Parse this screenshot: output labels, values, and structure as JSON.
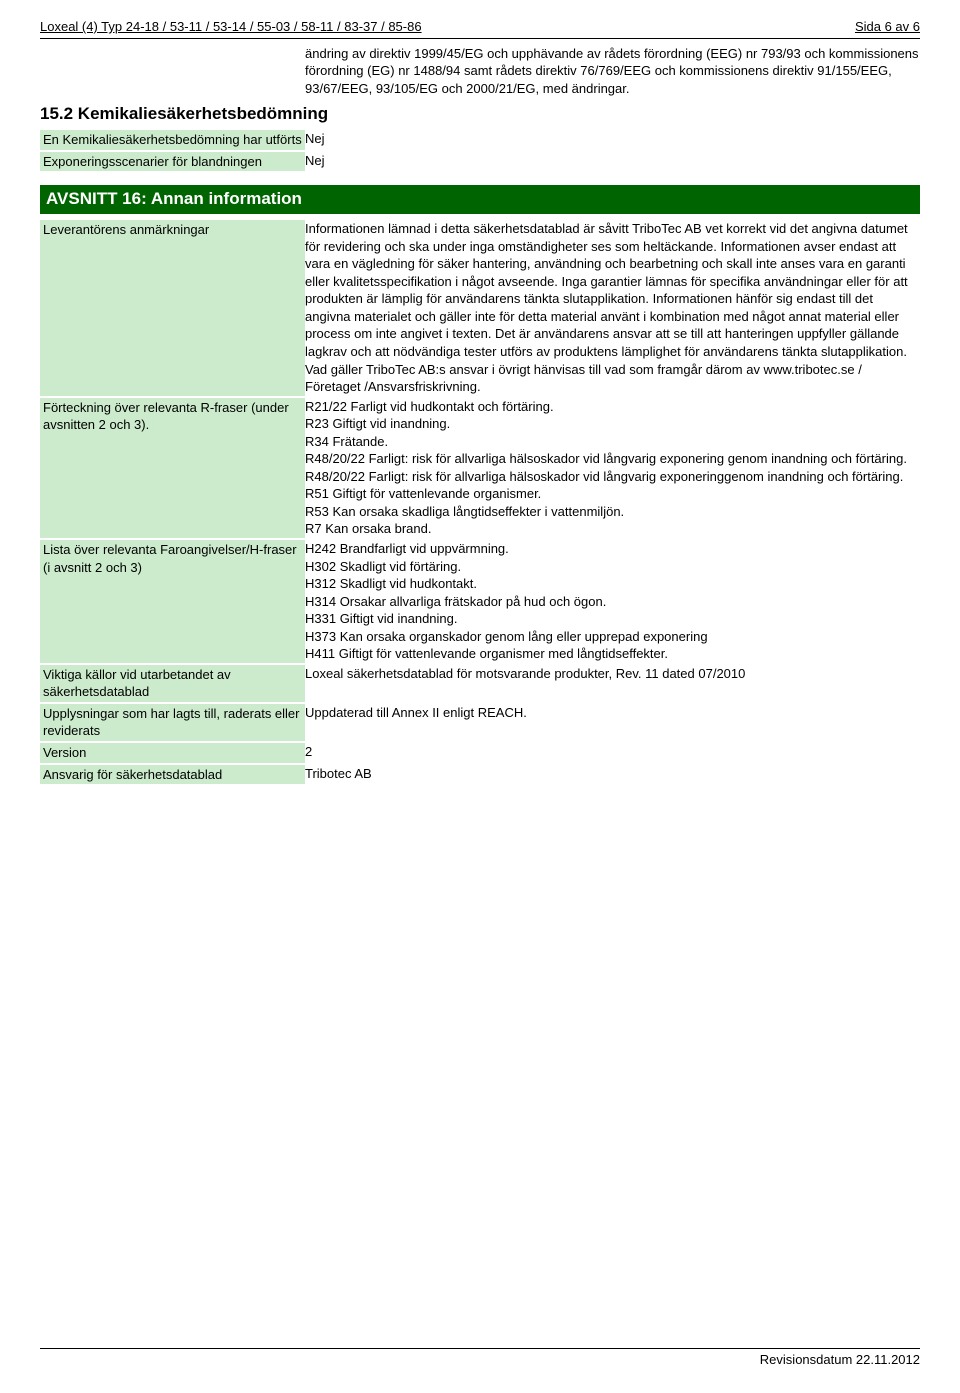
{
  "header": {
    "title": "Loxeal (4) Typ 24-18 / 53-11 / 53-14 / 55-03 / 58-11 / 83-37 / 85-86",
    "page": "Sida 6 av 6"
  },
  "intro_right": "ändring av direktiv 1999/45/EG och upphävande av rådets förordning (EEG) nr 793/93 och kommissionens förordning (EG) nr 1488/94 samt rådets direktiv 76/769/EEG och kommissionens direktiv 91/155/EEG, 93/67/EEG, 93/105/EG och 2000/21/EG, med ändringar.",
  "section15_2": {
    "heading": "15.2 Kemikaliesäkerhetsbedömning",
    "rows": [
      {
        "label": "En Kemikaliesäkerhetsbedömning har utförts",
        "value": "Nej"
      },
      {
        "label": "Exponeringsscenarier för blandningen",
        "value": "Nej"
      }
    ]
  },
  "section16": {
    "banner": "AVSNITT 16: Annan information",
    "rows": [
      {
        "label": "Leverantörens anmärkningar",
        "value": "Informationen lämnad i detta säkerhetsdatablad är såvitt TriboTec AB vet korrekt vid det angivna datumet för revidering och ska under inga omständigheter ses som heltäckande. Informationen avser endast att vara en vägledning för säker hantering, användning och bearbetning och skall inte anses vara en garanti eller kvalitetsspecifikation i något avseende. Inga garantier lämnas för specifika användningar eller för att produkten är lämplig för användarens tänkta slutapplikation. Informationen hänför sig endast till det angivna materialet och gäller inte för detta material använt i kombination med något annat material eller process om inte angivet i texten. Det är användarens ansvar att se till att hanteringen uppfyller gällande lagkrav och att nödvändiga tester utförs av produktens lämplighet för användarens tänkta slutapplikation. Vad gäller TriboTec AB:s ansvar i övrigt hänvisas till vad som framgår därom av www.tribotec.se / Företaget /Ansvarsfriskrivning."
      },
      {
        "label": "Förteckning över relevanta R-fraser (under avsnitten 2 och 3).",
        "lines": [
          "R21/22 Farligt vid hudkontakt och förtäring.",
          "R23 Giftigt vid inandning.",
          "R34 Frätande.",
          "R48/20/22 Farligt: risk för allvarliga hälsoskador vid långvarig exponering genom inandning och förtäring.",
          "R48/20/22 Farligt: risk för allvarliga hälsoskador vid långvarig exponeringgenom inandning och förtäring.",
          "R51 Giftigt för vattenlevande organismer.",
          "R53 Kan orsaka skadliga långtidseffekter i vattenmiljön.",
          "R7 Kan orsaka brand."
        ]
      },
      {
        "label": "Lista över relevanta Faroangivelser/H-fraser (i avsnitt 2 och 3)",
        "lines": [
          "H242 Brandfarligt vid uppvärmning.",
          "H302 Skadligt vid förtäring.",
          "H312 Skadligt vid hudkontakt.",
          "H314 Orsakar allvarliga frätskador på hud och ögon.",
          "H331 Giftigt vid inandning.",
          "H373 Kan orsaka organskador genom lång eller upprepad exponering",
          "H411 Giftigt för vattenlevande organismer med långtidseffekter."
        ]
      },
      {
        "label": "Viktiga källor vid utarbetandet av säkerhetsdatablad",
        "value": "Loxeal säkerhetsdatablad för motsvarande produkter, Rev. 11 dated 07/2010"
      },
      {
        "label": "Upplysningar som har lagts till, raderats eller reviderats",
        "value": "Uppdaterad till Annex II enligt REACH."
      },
      {
        "label": "Version",
        "value": "2"
      },
      {
        "label": "Ansvarig för säkerhetsdatablad",
        "value": "Tribotec AB"
      }
    ]
  },
  "footer": "Revisionsdatum 22.11.2012"
}
